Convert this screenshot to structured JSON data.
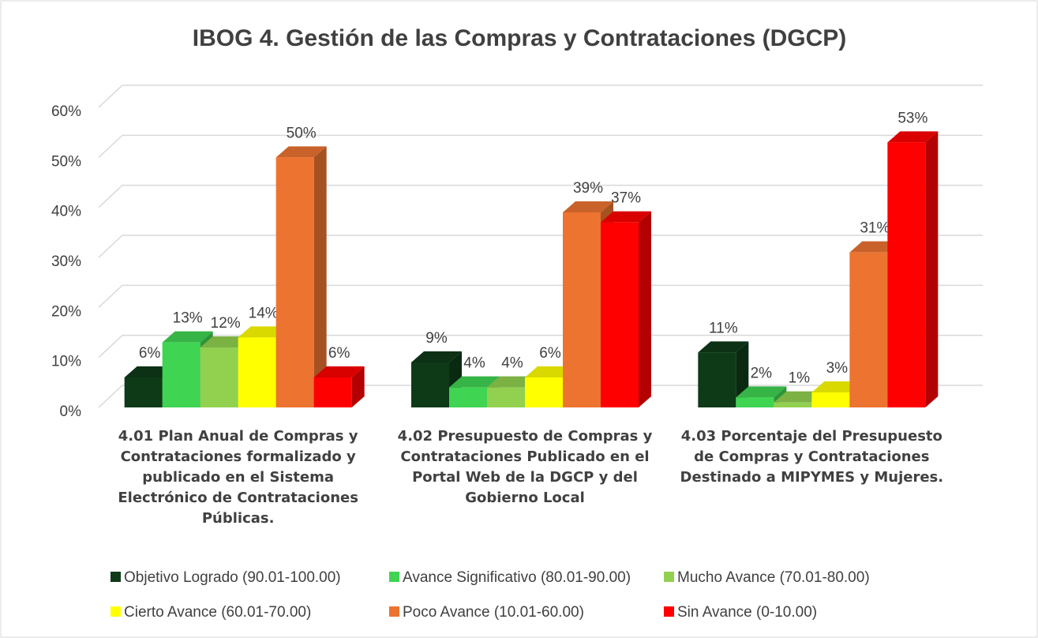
{
  "chart_data": {
    "type": "bar3d",
    "title": "IBOG 4. Gestión de las Compras y Contrataciones (DGCP)",
    "categories": [
      "4.01 Plan Anual de Compras y Contrataciones formalizado y publicado en el Sistema Electrónico de Contrataciones Públicas.",
      "4.02 Presupuesto de Compras y Contrataciones Publicado en el Portal Web de la DGCP y del Gobierno Local",
      "4.03 Porcentaje del Presupuesto de Compras y Contrataciones Destinado a MIPYMES y Mujeres."
    ],
    "series": [
      {
        "name": "Objetivo Logrado (90.01-100.00)",
        "color": "#0e3a18",
        "values": [
          6,
          9,
          11
        ],
        "value_labels": [
          "6%",
          "9%",
          "11%"
        ]
      },
      {
        "name": "Avance Significativo (80.01-90.00)",
        "color": "#3fd452",
        "values": [
          13,
          4,
          2
        ],
        "value_labels": [
          "13%",
          "4%",
          "2%"
        ]
      },
      {
        "name": "Mucho Avance (70.01-80.00)",
        "color": "#92d050",
        "values": [
          12,
          4,
          1
        ],
        "value_labels": [
          "12%",
          "4%",
          "1%"
        ]
      },
      {
        "name": "Cierto Avance (60.01-70.00)",
        "color": "#ffff00",
        "values": [
          14,
          6,
          3
        ],
        "value_labels": [
          "14%",
          "6%",
          "3%"
        ]
      },
      {
        "name": "Poco Avance (10.01-60.00)",
        "color": "#ed7331",
        "values": [
          50,
          39,
          31
        ],
        "value_labels": [
          "50%",
          "39%",
          "31%"
        ]
      },
      {
        "name": "Sin Avance (0-10.00)",
        "color": "#ff0000",
        "values": [
          6,
          37,
          53
        ],
        "value_labels": [
          "6%",
          "37%",
          "53%"
        ]
      }
    ],
    "ylim": [
      0,
      60
    ],
    "yticks": [
      {
        "value": 0,
        "label": "0%"
      },
      {
        "value": 10,
        "label": "10%"
      },
      {
        "value": 20,
        "label": "20%"
      },
      {
        "value": 30,
        "label": "30%"
      },
      {
        "value": 40,
        "label": "40%"
      },
      {
        "value": 50,
        "label": "50%"
      },
      {
        "value": 60,
        "label": "60%"
      }
    ],
    "grid": true
  }
}
